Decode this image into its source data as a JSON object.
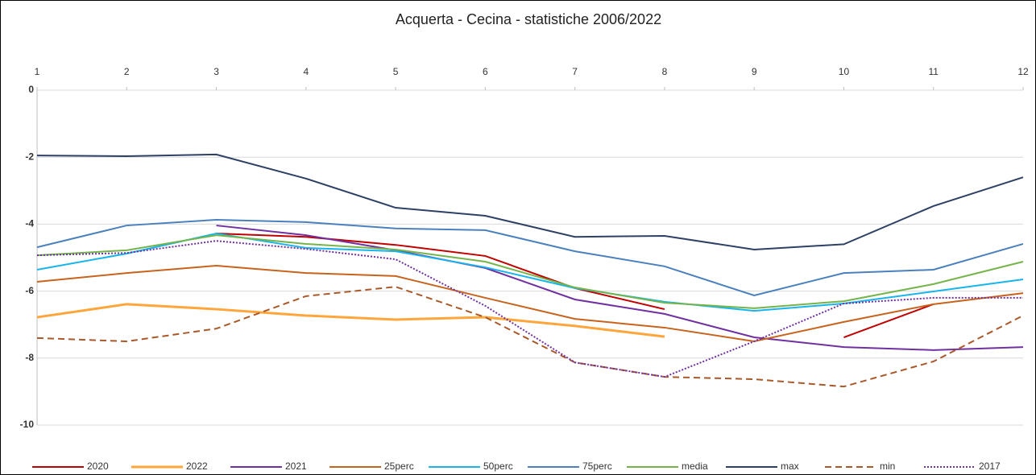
{
  "chart_data": {
    "type": "line",
    "title": "Acquerta - Cecina - statistiche 2006/2022",
    "x": [
      1,
      2,
      3,
      4,
      5,
      6,
      7,
      8,
      9,
      10,
      11,
      12
    ],
    "xlim": [
      1,
      12
    ],
    "xticks": [
      1,
      2,
      3,
      4,
      5,
      6,
      7,
      8,
      9,
      10,
      11,
      12
    ],
    "ylim": [
      -10,
      0
    ],
    "yticks": [
      0,
      -2,
      -4,
      -6,
      -8,
      -10
    ],
    "grid": true,
    "legend": "bottom",
    "series": [
      {
        "name": "2020",
        "color": "#c00000",
        "line_style": "solid",
        "values": [
          null,
          null,
          -4.28,
          -4.38,
          -4.62,
          -4.95,
          -5.91,
          -6.54,
          null,
          -7.38,
          -6.39,
          null
        ]
      },
      {
        "name": "2022",
        "color": "#ffa53a",
        "line_style": "thick",
        "values": [
          -6.78,
          -6.39,
          -6.54,
          -6.73,
          -6.85,
          -6.78,
          -7.04,
          -7.36,
          null,
          null,
          null,
          null
        ]
      },
      {
        "name": "2021",
        "color": "#7030a0",
        "line_style": "solid",
        "values": [
          null,
          null,
          -4.04,
          -4.33,
          -4.78,
          -5.31,
          -6.25,
          -6.68,
          -7.38,
          -7.67,
          -7.76,
          -7.67
        ]
      },
      {
        "name": "25perc",
        "color": "#c8631e",
        "line_style": "solid",
        "values": [
          -5.72,
          -5.46,
          -5.24,
          -5.46,
          -5.55,
          -6.2,
          -6.83,
          -7.09,
          -7.5,
          -6.92,
          -6.39,
          -6.06
        ]
      },
      {
        "name": "50perc",
        "color": "#18b4ec",
        "line_style": "solid",
        "values": [
          -5.36,
          -4.88,
          -4.28,
          -4.71,
          -4.81,
          -5.29,
          -5.91,
          -6.32,
          -6.59,
          -6.37,
          -6.01,
          -5.65
        ]
      },
      {
        "name": "75perc",
        "color": "#4a80bd",
        "line_style": "solid",
        "values": [
          -4.69,
          -4.04,
          -3.87,
          -3.94,
          -4.13,
          -4.18,
          -4.81,
          -5.26,
          -6.13,
          -5.46,
          -5.36,
          -4.59
        ]
      },
      {
        "name": "media",
        "color": "#74b44a",
        "line_style": "solid",
        "values": [
          -4.93,
          -4.78,
          -4.33,
          -4.59,
          -4.76,
          -5.12,
          -5.89,
          -6.35,
          -6.51,
          -6.3,
          -5.79,
          -5.12
        ]
      },
      {
        "name": "max",
        "color": "#2e4064",
        "line_style": "solid",
        "values": [
          -1.95,
          -1.97,
          -1.92,
          -2.64,
          -3.51,
          -3.75,
          -4.38,
          -4.35,
          -4.76,
          -4.6,
          -3.46,
          -2.6
        ]
      },
      {
        "name": "min",
        "color": "#a9582a",
        "line_style": "dashed",
        "values": [
          -7.4,
          -7.5,
          -7.12,
          -6.15,
          -5.87,
          -6.78,
          -8.13,
          -8.56,
          -8.63,
          -8.85,
          -8.1,
          -6.73
        ]
      },
      {
        "name": "2017",
        "color": "#7030a0",
        "line_style": "dotted",
        "values": [
          -4.93,
          -4.86,
          -4.5,
          -4.74,
          -5.05,
          -6.44,
          -8.13,
          -8.56,
          -7.5,
          -6.37,
          -6.2,
          -6.2
        ]
      }
    ]
  }
}
